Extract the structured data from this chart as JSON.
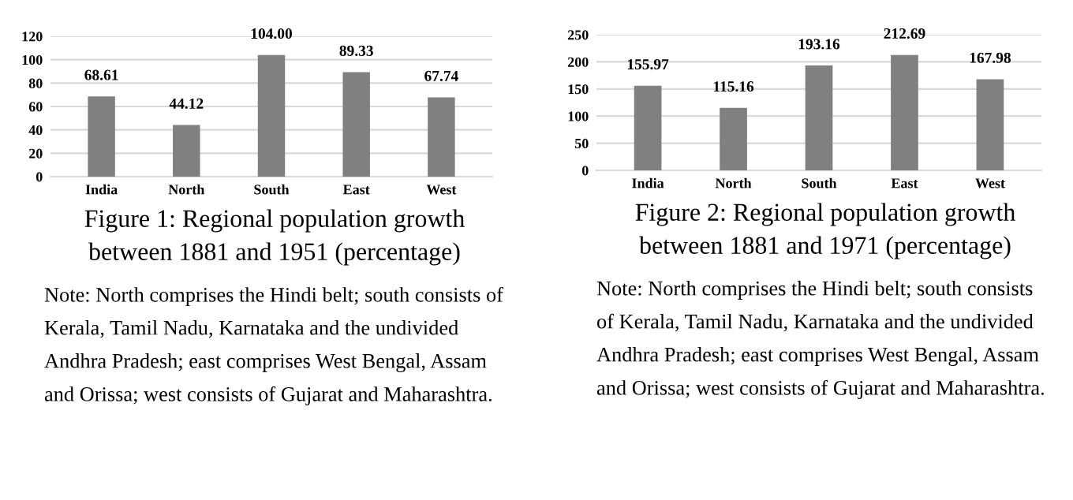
{
  "chart_data": [
    {
      "type": "bar",
      "title": "Figure 1: Regional population growth between 1881 and 1951 (percentage)",
      "categories": [
        "India",
        "North",
        "South",
        "East",
        "West"
      ],
      "values": [
        68.61,
        44.12,
        104.0,
        89.33,
        67.74
      ],
      "value_labels": [
        "68.61",
        "44.12",
        "104.00",
        "89.33",
        "67.74"
      ],
      "color": "#808080",
      "ylim": [
        0,
        120
      ],
      "yticks": [
        0,
        20,
        40,
        60,
        80,
        100,
        120
      ],
      "grid": "y",
      "annotations": [
        "Note: North comprises the Hindi belt; south consists of Kerala, Tamil Nadu, Karnataka and the undivided Andhra Pradesh; east comprises West Bengal, Assam and Orissa; west consists of Gujarat and Maharashtra."
      ]
    },
    {
      "type": "bar",
      "title": "Figure 2: Regional population growth between 1881 and 1971 (percentage)",
      "categories": [
        "India",
        "North",
        "South",
        "East",
        "West"
      ],
      "values": [
        155.97,
        115.16,
        193.16,
        212.69,
        167.98
      ],
      "value_labels": [
        "155.97",
        "115.16",
        "193.16",
        "212.69",
        "167.98"
      ],
      "color": "#808080",
      "ylim": [
        0,
        250
      ],
      "yticks": [
        0,
        50,
        100,
        150,
        200,
        250
      ],
      "grid": "y",
      "annotations": [
        "Note: North comprises the Hindi belt; south consists of Kerala, Tamil Nadu, Karnataka and the undivided Andhra Pradesh; east comprises West Bengal, Assam and Orissa; west consists of Gujarat and Maharashtra."
      ]
    }
  ]
}
